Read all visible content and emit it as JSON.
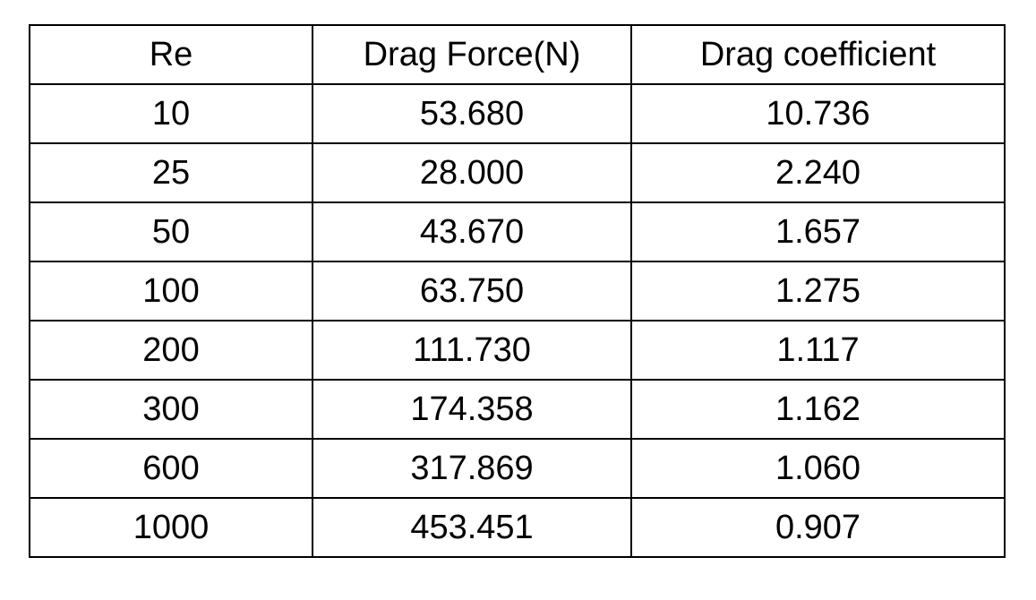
{
  "table": {
    "headers": [
      "Re",
      "Drag Force(N)",
      "Drag coefficient"
    ],
    "rows": [
      [
        "10",
        "53.680",
        "10.736"
      ],
      [
        "25",
        "28.000",
        "2.240"
      ],
      [
        "50",
        "43.670",
        "1.657"
      ],
      [
        "100",
        "63.750",
        "1.275"
      ],
      [
        "200",
        "111.730",
        "1.117"
      ],
      [
        "300",
        "174.358",
        "1.162"
      ],
      [
        "600",
        "317.869",
        "1.060"
      ],
      [
        "1000",
        "453.451",
        "0.907"
      ]
    ]
  }
}
